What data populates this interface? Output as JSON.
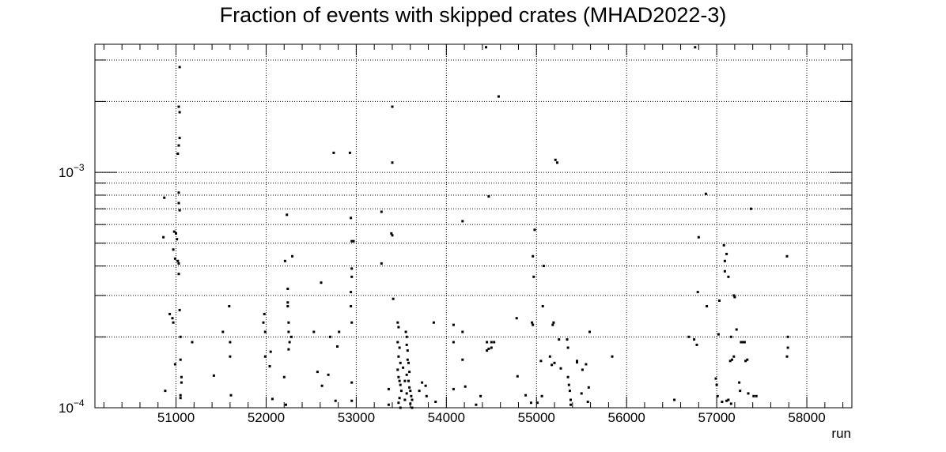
{
  "chart_data": {
    "type": "scatter",
    "title": "Fraction of events with skipped crates (MHAD2022-3)",
    "xlabel": "run",
    "ylabel": "",
    "xlim": [
      50100,
      58500
    ],
    "ylim": [
      0.0001,
      0.0035
    ],
    "y_scale": "log",
    "grid": true,
    "x_ticks": [
      51000,
      52000,
      53000,
      54000,
      55000,
      56000,
      57000,
      58000
    ],
    "x_tick_labels": [
      "51000",
      "52000",
      "53000",
      "54000",
      "55000",
      "56000",
      "57000",
      "58000"
    ],
    "y_tick_labels": [
      {
        "value": 0.001,
        "base": "10",
        "exp": "−3"
      },
      {
        "value": 0.0001,
        "base": "10",
        "exp": "−4"
      }
    ],
    "marker_color": "#000000",
    "points": [
      [
        50870,
        0.00078
      ],
      [
        50860,
        0.00053
      ],
      [
        50880,
        0.000118
      ],
      [
        50930,
        0.00025
      ],
      [
        50960,
        0.00024
      ],
      [
        50970,
        0.00023
      ],
      [
        50980,
        0.00056
      ],
      [
        50970,
        0.00047
      ],
      [
        50990,
        0.00043
      ],
      [
        51000,
        0.00055
      ],
      [
        51010,
        0.00052
      ],
      [
        51020,
        0.00042
      ],
      [
        51030,
        0.00041
      ],
      [
        51030,
        0.00037
      ],
      [
        51040,
        0.00026
      ],
      [
        51050,
        0.0002
      ],
      [
        51050,
        0.00016
      ],
      [
        51060,
        0.000135
      ],
      [
        51060,
        0.000128
      ],
      [
        51050,
        0.000113
      ],
      [
        51050,
        0.00011
      ],
      [
        50990,
        0.000153
      ],
      [
        51030,
        0.00082
      ],
      [
        51030,
        0.00074
      ],
      [
        51040,
        0.00069
      ],
      [
        51020,
        0.0012
      ],
      [
        51030,
        0.0013
      ],
      [
        51040,
        0.0014
      ],
      [
        51030,
        0.0019
      ],
      [
        51030,
        0.0019
      ],
      [
        51040,
        0.0018
      ],
      [
        51040,
        0.0028
      ],
      [
        51180,
        0.00019
      ],
      [
        51420,
        0.000137
      ],
      [
        51520,
        0.00021
      ],
      [
        51590,
        0.00027
      ],
      [
        51600,
        0.00019
      ],
      [
        51600,
        0.000165
      ],
      [
        51610,
        0.000113
      ],
      [
        51980,
        0.00025
      ],
      [
        51970,
        0.00023
      ],
      [
        51990,
        0.00021
      ],
      [
        51990,
        0.000165
      ],
      [
        52050,
        0.000173
      ],
      [
        52040,
        0.00015
      ],
      [
        52070,
        0.000109
      ],
      [
        52230,
        0.00066
      ],
      [
        52210,
        0.00042
      ],
      [
        52240,
        0.00032
      ],
      [
        52240,
        0.00028
      ],
      [
        52240,
        0.00027
      ],
      [
        52250,
        0.00023
      ],
      [
        52250,
        0.00021
      ],
      [
        52260,
        0.00019
      ],
      [
        52250,
        0.000177
      ],
      [
        52280,
        0.0002
      ],
      [
        52290,
        0.00044
      ],
      [
        52220,
        0.000103
      ],
      [
        52200,
        0.000135
      ],
      [
        52530,
        0.00021
      ],
      [
        52570,
        0.000142
      ],
      [
        52610,
        0.00034
      ],
      [
        52620,
        0.000124
      ],
      [
        52690,
        0.000138
      ],
      [
        52710,
        0.0002
      ],
      [
        52770,
        0.000107
      ],
      [
        52750,
        0.00121
      ],
      [
        52790,
        0.000182
      ],
      [
        52810,
        0.00021
      ],
      [
        52930,
        0.00121
      ],
      [
        52940,
        0.00064
      ],
      [
        52950,
        0.00051
      ],
      [
        52950,
        0.00039
      ],
      [
        52950,
        0.00036
      ],
      [
        52940,
        0.00031
      ],
      [
        52940,
        0.00027
      ],
      [
        52950,
        0.00023
      ],
      [
        52970,
        0.00051
      ],
      [
        52950,
        0.000128
      ],
      [
        52950,
        0.000107
      ],
      [
        53280,
        0.00068
      ],
      [
        53280,
        0.00041
      ],
      [
        53390,
        0.00055
      ],
      [
        53400,
        0.00054
      ],
      [
        53400,
        0.0011
      ],
      [
        53400,
        0.0019
      ],
      [
        53410,
        0.00029
      ],
      [
        53360,
        0.00012
      ],
      [
        53360,
        0.000103
      ],
      [
        53460,
        0.00023
      ],
      [
        53470,
        0.00022
      ],
      [
        53460,
        0.00019
      ],
      [
        53480,
        0.00018
      ],
      [
        53470,
        0.000165
      ],
      [
        53490,
        0.000155
      ],
      [
        53460,
        0.000145
      ],
      [
        53470,
        0.000135
      ],
      [
        53480,
        0.00013
      ],
      [
        53490,
        0.000125
      ],
      [
        53500,
        0.000118
      ],
      [
        53480,
        0.00011
      ],
      [
        53470,
        0.000105
      ],
      [
        53490,
        0.0001
      ],
      [
        53520,
        0.000148
      ],
      [
        53540,
        0.00013
      ],
      [
        53550,
        0.00021
      ],
      [
        53560,
        0.0002
      ],
      [
        53560,
        0.000185
      ],
      [
        53570,
        0.000175
      ],
      [
        53570,
        0.00016
      ],
      [
        53580,
        0.000155
      ],
      [
        53590,
        0.000142
      ],
      [
        53560,
        0.000138
      ],
      [
        53580,
        0.00013
      ],
      [
        53590,
        0.000122
      ],
      [
        53600,
        0.000118
      ],
      [
        53610,
        0.000112
      ],
      [
        53620,
        0.000108
      ],
      [
        53600,
        0.000104
      ],
      [
        53620,
        0.0001
      ],
      [
        53560,
        0.000115
      ],
      [
        53540,
        0.000108
      ],
      [
        53700,
        0.000118
      ],
      [
        53730,
        0.000128
      ],
      [
        53770,
        0.000124
      ],
      [
        53780,
        0.000112
      ],
      [
        53860,
        0.00023
      ],
      [
        53880,
        0.000106
      ],
      [
        54080,
        0.00019
      ],
      [
        54080,
        0.000225
      ],
      [
        54080,
        0.00012
      ],
      [
        54180,
        0.00062
      ],
      [
        54180,
        0.00021
      ],
      [
        54180,
        0.00016
      ],
      [
        54210,
        0.000123
      ],
      [
        54330,
        0.000103
      ],
      [
        54380,
        0.000112
      ],
      [
        54450,
        0.00019
      ],
      [
        54450,
        0.000175
      ],
      [
        54470,
        0.000178
      ],
      [
        54500,
        0.00018
      ],
      [
        54500,
        0.00019
      ],
      [
        54530,
        0.00019
      ],
      [
        54440,
        0.0034
      ],
      [
        54470,
        0.00079
      ],
      [
        54580,
        0.0021
      ],
      [
        54780,
        0.00024
      ],
      [
        54790,
        0.000136
      ],
      [
        54880,
        0.000113
      ],
      [
        54940,
        0.000105
      ],
      [
        54950,
        0.00023
      ],
      [
        54960,
        0.00044
      ],
      [
        54970,
        0.00036
      ],
      [
        54980,
        0.00057
      ],
      [
        54960,
        0.000225
      ],
      [
        55010,
        0.000105
      ],
      [
        55050,
        0.000158
      ],
      [
        55060,
        0.000112
      ],
      [
        55070,
        0.00027
      ],
      [
        55080,
        0.0004
      ],
      [
        55150,
        0.000165
      ],
      [
        55170,
        0.000152
      ],
      [
        55180,
        0.000225
      ],
      [
        55190,
        0.00023
      ],
      [
        55200,
        0.000155
      ],
      [
        55210,
        0.00113
      ],
      [
        55230,
        0.0011
      ],
      [
        55250,
        0.000195
      ],
      [
        55270,
        0.000147
      ],
      [
        55340,
        0.000195
      ],
      [
        55350,
        0.00018
      ],
      [
        55350,
        0.000135
      ],
      [
        55360,
        0.000125
      ],
      [
        55370,
        0.000118
      ],
      [
        55380,
        0.000108
      ],
      [
        55380,
        0.000103
      ],
      [
        55450,
        0.000158
      ],
      [
        55450,
        0.000156
      ],
      [
        55500,
        0.000115
      ],
      [
        55510,
        0.000145
      ],
      [
        55550,
        0.000153
      ],
      [
        55570,
        0.000106
      ],
      [
        55580,
        0.000122
      ],
      [
        55590,
        0.00021
      ],
      [
        55840,
        0.000165
      ],
      [
        56530,
        0.000108
      ],
      [
        56690,
        0.0002
      ],
      [
        56750,
        0.000195
      ],
      [
        56780,
        0.000185
      ],
      [
        56790,
        0.00031
      ],
      [
        56800,
        0.00053
      ],
      [
        56760,
        0.0034
      ],
      [
        56880,
        0.00081
      ],
      [
        56890,
        0.00027
      ],
      [
        56990,
        0.000133
      ],
      [
        57000,
        0.000125
      ],
      [
        57010,
        0.000112
      ],
      [
        57020,
        0.000205
      ],
      [
        57030,
        0.000285
      ],
      [
        57060,
        0.000106
      ],
      [
        57080,
        0.00049
      ],
      [
        57090,
        0.00042
      ],
      [
        57090,
        0.00038
      ],
      [
        57110,
        0.00045
      ],
      [
        57130,
        0.00036
      ],
      [
        57150,
        0.000158
      ],
      [
        57170,
        0.00016
      ],
      [
        57190,
        0.000165
      ],
      [
        57160,
        0.0002
      ],
      [
        57190,
        0.0003
      ],
      [
        57200,
        0.000295
      ],
      [
        57220,
        0.000215
      ],
      [
        57250,
        0.000128
      ],
      [
        57260,
        0.000118
      ],
      [
        57270,
        0.00019
      ],
      [
        57290,
        0.00019
      ],
      [
        57310,
        0.00019
      ],
      [
        57320,
        0.000158
      ],
      [
        57340,
        0.00016
      ],
      [
        57350,
        0.000115
      ],
      [
        57380,
        0.0007
      ],
      [
        57410,
        0.000112
      ],
      [
        57440,
        0.000112
      ],
      [
        57780,
        0.00044
      ],
      [
        57780,
        0.000165
      ],
      [
        57790,
        0.00018
      ],
      [
        57790,
        0.0002
      ],
      [
        57110,
        0.000107
      ],
      [
        57130,
        0.000108
      ],
      [
        57160,
        0.000104
      ]
    ]
  }
}
